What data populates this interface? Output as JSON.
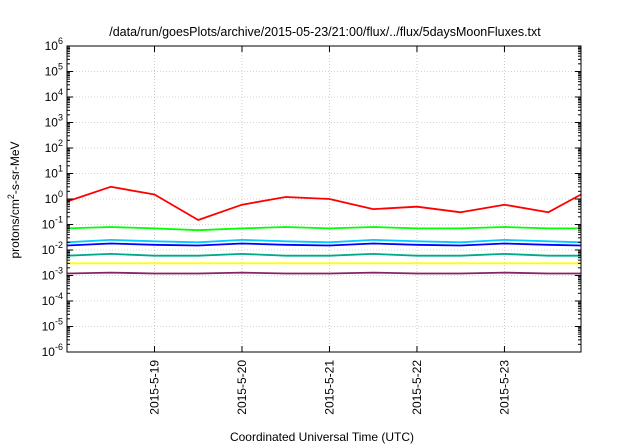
{
  "chart_data": {
    "type": "line",
    "title": "/data/run/goesPlots/archive/2015-05-23/21:00/flux/../flux/5daysMoonFluxes.txt",
    "xlabel": "Coordinated Universal Time (UTC)",
    "ylabel": {
      "pre": "protons/cm",
      "sup": "2",
      "post": "-s-sr-MeV"
    },
    "yscale": "log",
    "xlim": [
      "2015-05-18T00:00",
      "2015-05-23T21:00"
    ],
    "ylim": [
      1e-06,
      1000000
    ],
    "grid": true,
    "x_ticks": [
      "2015-5-19",
      "2015-5-20",
      "2015-5-21",
      "2015-5-22",
      "2015-5-23"
    ],
    "y_ticks": [
      {
        "base": "10",
        "exp": "-6"
      },
      {
        "base": "10",
        "exp": "-5"
      },
      {
        "base": "10",
        "exp": "-4"
      },
      {
        "base": "10",
        "exp": "-3"
      },
      {
        "base": "10",
        "exp": "-2"
      },
      {
        "base": "10",
        "exp": "-1"
      },
      {
        "base": "10",
        "exp": "0"
      },
      {
        "base": "10",
        "exp": "1"
      },
      {
        "base": "10",
        "exp": "2"
      },
      {
        "base": "10",
        "exp": "3"
      },
      {
        "base": "10",
        "exp": "4"
      },
      {
        "base": "10",
        "exp": "5"
      },
      {
        "base": "10",
        "exp": "6"
      }
    ],
    "x": [
      "2015-05-18T00:00",
      "2015-05-18T12:00",
      "2015-05-19T00:00",
      "2015-05-19T12:00",
      "2015-05-20T00:00",
      "2015-05-20T12:00",
      "2015-05-21T00:00",
      "2015-05-21T12:00",
      "2015-05-22T00:00",
      "2015-05-22T12:00",
      "2015-05-23T00:00",
      "2015-05-23T12:00",
      "2015-05-23T21:00"
    ],
    "series": [
      {
        "color": "#ff0000",
        "values": [
          0.8,
          3,
          1.5,
          0.15,
          0.6,
          1.2,
          1.0,
          0.4,
          0.5,
          0.3,
          0.6,
          0.3,
          1.5
        ]
      },
      {
        "color": "#00ff00",
        "values": [
          0.07,
          0.08,
          0.07,
          0.06,
          0.07,
          0.08,
          0.07,
          0.08,
          0.07,
          0.07,
          0.08,
          0.07,
          0.07
        ]
      },
      {
        "color": "#00ccff",
        "values": [
          0.02,
          0.025,
          0.022,
          0.02,
          0.025,
          0.022,
          0.02,
          0.025,
          0.022,
          0.02,
          0.025,
          0.022,
          0.02
        ]
      },
      {
        "color": "#0000ff",
        "values": [
          0.015,
          0.018,
          0.016,
          0.015,
          0.018,
          0.016,
          0.015,
          0.018,
          0.016,
          0.015,
          0.018,
          0.016,
          0.015
        ]
      },
      {
        "color": "#00aa88",
        "values": [
          0.006,
          0.007,
          0.006,
          0.006,
          0.007,
          0.006,
          0.006,
          0.007,
          0.006,
          0.006,
          0.007,
          0.006,
          0.006
        ]
      },
      {
        "color": "#ffff00",
        "values": [
          0.003,
          0.003,
          0.003,
          0.003,
          0.003,
          0.003,
          0.003,
          0.003,
          0.003,
          0.003,
          0.003,
          0.003,
          0.003
        ]
      },
      {
        "color": "#882266",
        "values": [
          0.0012,
          0.0013,
          0.0012,
          0.0012,
          0.0013,
          0.0012,
          0.0012,
          0.0013,
          0.0012,
          0.0012,
          0.0013,
          0.0012,
          0.0012
        ]
      }
    ]
  }
}
